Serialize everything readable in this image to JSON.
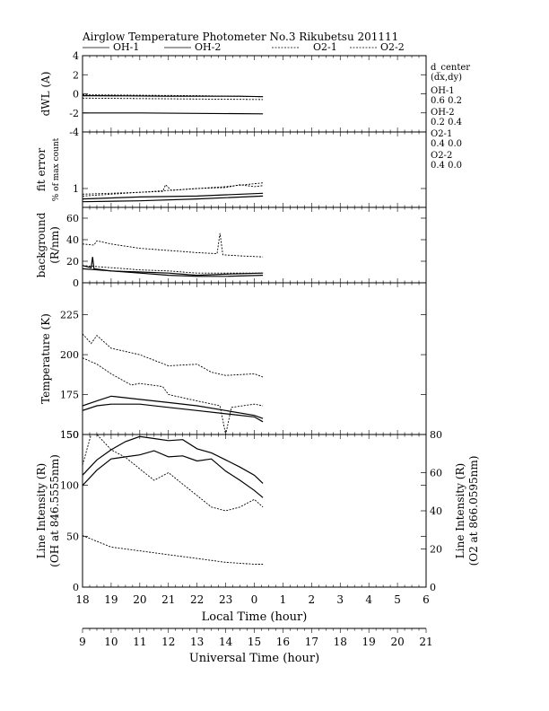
{
  "chart_data": {
    "type": "line",
    "title": "Airglow Temperature Photometer No.3  Rikubetsu    201111",
    "legend": [
      {
        "name": "OH-1",
        "style": "solid"
      },
      {
        "name": "OH-2",
        "style": "solid"
      },
      {
        "name": "O2-1",
        "style": "dashed"
      },
      {
        "name": "O2-2",
        "style": "dashed"
      }
    ],
    "x_axis_local": {
      "label": "Local Time (hour)",
      "ticks": [
        "18",
        "19",
        "20",
        "21",
        "22",
        "23",
        "0",
        "1",
        "2",
        "3",
        "4",
        "5",
        "6"
      ],
      "range_hours": [
        18,
        30
      ]
    },
    "x_axis_ut": {
      "label": "Universal Time (hour)",
      "ticks": [
        "9",
        "10",
        "11",
        "12",
        "13",
        "14",
        "15",
        "16",
        "17",
        "18",
        "19",
        "20",
        "21"
      ]
    },
    "panels": [
      {
        "id": "dwl",
        "ylabel": "dWL (A)",
        "ylim": [
          -4,
          4
        ],
        "yticks": [
          "4",
          "2",
          "0",
          "-2",
          "-4"
        ],
        "series": [
          {
            "name": "OH-1",
            "style": "solid",
            "points": [
              [
                18.0,
                -0.2
              ],
              [
                19.5,
                -0.22
              ],
              [
                21,
                -0.25
              ],
              [
                22.5,
                -0.25
              ],
              [
                23.5,
                -0.25
              ],
              [
                24.3,
                -0.3
              ]
            ]
          },
          {
            "name": "OH-2",
            "style": "solid",
            "points": [
              [
                18.0,
                -2.0
              ],
              [
                20,
                -2.0
              ],
              [
                22,
                -2.05
              ],
              [
                24.3,
                -2.1
              ]
            ]
          },
          {
            "name": "O2-1",
            "style": "dashed",
            "points": [
              [
                18.0,
                -0.1
              ],
              [
                20,
                -0.15
              ],
              [
                22,
                -0.2
              ],
              [
                24.3,
                -0.3
              ]
            ]
          },
          {
            "name": "O2-2",
            "style": "dashed",
            "points": [
              [
                18.0,
                -0.45
              ],
              [
                20,
                -0.5
              ],
              [
                22,
                -0.55
              ],
              [
                24.3,
                -0.6
              ]
            ]
          }
        ]
      },
      {
        "id": "fit_error",
        "ylabel": "fit error",
        "ylabel2": "% of max count",
        "ylim": [
          0,
          4
        ],
        "yticks": [
          "1"
        ],
        "series": [
          {
            "name": "OH-1",
            "style": "solid",
            "points": [
              [
                18,
                0.3
              ],
              [
                20,
                0.35
              ],
              [
                22,
                0.45
              ],
              [
                24.3,
                0.6
              ]
            ]
          },
          {
            "name": "OH-2",
            "style": "solid",
            "points": [
              [
                18,
                0.45
              ],
              [
                20,
                0.55
              ],
              [
                22,
                0.6
              ],
              [
                24.3,
                0.75
              ]
            ]
          },
          {
            "name": "O2-1",
            "style": "dashed",
            "points": [
              [
                18,
                0.7
              ],
              [
                19,
                0.75
              ],
              [
                20,
                0.8
              ],
              [
                20.8,
                0.85
              ],
              [
                20.9,
                1.2
              ],
              [
                21.1,
                0.9
              ],
              [
                22,
                1.0
              ],
              [
                23,
                1.05
              ],
              [
                23.5,
                1.2
              ],
              [
                24,
                1.1
              ],
              [
                24.3,
                1.15
              ]
            ]
          },
          {
            "name": "O2-2",
            "style": "dashed",
            "points": [
              [
                18,
                0.6
              ],
              [
                19,
                0.7
              ],
              [
                20,
                0.8
              ],
              [
                21,
                0.9
              ],
              [
                22,
                1.0
              ],
              [
                23,
                1.1
              ],
              [
                24.3,
                1.3
              ]
            ]
          }
        ]
      },
      {
        "id": "background",
        "ylabel": "background",
        "ylabel2": "(R/nm)",
        "ylim": [
          0,
          70
        ],
        "yticks": [
          "60",
          "40",
          "20",
          "0"
        ],
        "series": [
          {
            "name": "OH-1",
            "style": "solid",
            "points": [
              [
                18,
                16
              ],
              [
                18.3,
                14
              ],
              [
                18.35,
                24
              ],
              [
                18.4,
                13
              ],
              [
                19,
                11
              ],
              [
                20,
                10
              ],
              [
                21,
                9
              ],
              [
                22,
                7
              ],
              [
                23,
                8
              ],
              [
                24.3,
                9
              ]
            ]
          },
          {
            "name": "OH-2",
            "style": "solid",
            "points": [
              [
                18,
                13
              ],
              [
                19,
                11
              ],
              [
                20,
                9
              ],
              [
                21,
                7
              ],
              [
                22,
                6
              ],
              [
                23,
                6
              ],
              [
                24.3,
                7
              ]
            ]
          },
          {
            "name": "O2-1",
            "style": "dashed",
            "points": [
              [
                18,
                36
              ],
              [
                18.4,
                35
              ],
              [
                18.5,
                39
              ],
              [
                19,
                36
              ],
              [
                20,
                32
              ],
              [
                21,
                30
              ],
              [
                22,
                28
              ],
              [
                22.7,
                27
              ],
              [
                22.8,
                46
              ],
              [
                22.9,
                26
              ],
              [
                23.5,
                25
              ],
              [
                24.3,
                24
              ]
            ]
          },
          {
            "name": "O2-2",
            "style": "dashed",
            "points": [
              [
                18,
                16
              ],
              [
                19,
                14
              ],
              [
                20,
                12
              ],
              [
                21,
                11
              ],
              [
                22,
                9
              ],
              [
                23,
                9
              ],
              [
                24.3,
                9
              ]
            ]
          }
        ]
      },
      {
        "id": "temperature",
        "ylabel": "Temperature (K)",
        "ylim": [
          150,
          245
        ],
        "yticks": [
          "225",
          "200",
          "175",
          "150"
        ],
        "series": [
          {
            "name": "OH-1",
            "style": "solid",
            "points": [
              [
                18,
                168
              ],
              [
                18.5,
                171
              ],
              [
                19,
                174
              ],
              [
                20,
                172
              ],
              [
                21,
                170
              ],
              [
                22,
                168
              ],
              [
                23,
                165
              ],
              [
                24,
                162
              ],
              [
                24.3,
                160
              ]
            ]
          },
          {
            "name": "OH-2",
            "style": "solid",
            "points": [
              [
                18,
                165
              ],
              [
                18.5,
                168
              ],
              [
                19,
                169
              ],
              [
                20,
                169
              ],
              [
                21,
                167
              ],
              [
                22,
                165
              ],
              [
                23,
                163
              ],
              [
                24,
                161
              ],
              [
                24.3,
                158
              ]
            ]
          },
          {
            "name": "O2-1",
            "style": "dashed",
            "points": [
              [
                18,
                213
              ],
              [
                18.3,
                207
              ],
              [
                18.5,
                212
              ],
              [
                19,
                204
              ],
              [
                20,
                200
              ],
              [
                21,
                193
              ],
              [
                22,
                194
              ],
              [
                22.5,
                189
              ],
              [
                23,
                187
              ],
              [
                24,
                188
              ],
              [
                24.3,
                186
              ]
            ]
          },
          {
            "name": "O2-2",
            "style": "dashed",
            "points": [
              [
                18,
                198
              ],
              [
                18.5,
                194
              ],
              [
                19,
                188
              ],
              [
                19.7,
                181
              ],
              [
                20,
                182
              ],
              [
                20.8,
                180
              ],
              [
                21,
                175
              ],
              [
                22,
                171
              ],
              [
                22.8,
                168
              ],
              [
                23,
                150
              ],
              [
                23.2,
                167
              ],
              [
                24,
                169
              ],
              [
                24.3,
                168
              ]
            ]
          }
        ]
      },
      {
        "id": "intensity",
        "ylabel": "Line Intensity (R)",
        "ylabel2": "(OH at 846.5555nm)",
        "ylim": [
          0,
          150
        ],
        "yticks": [
          "150",
          "100",
          "50",
          "0"
        ],
        "yright_label": "Line Intensity (R)",
        "yright_label2": "(O2 at 866.0595nm)",
        "yright_lim": [
          0,
          80
        ],
        "yright_ticks": [
          "80",
          "60",
          "40",
          "20",
          "0"
        ],
        "series": [
          {
            "name": "OH-1",
            "style": "solid",
            "axis": "left",
            "points": [
              [
                18,
                100
              ],
              [
                18.5,
                115
              ],
              [
                19,
                126
              ],
              [
                19.5,
                128
              ],
              [
                20,
                130
              ],
              [
                20.5,
                134
              ],
              [
                21,
                128
              ],
              [
                21.5,
                129
              ],
              [
                22,
                124
              ],
              [
                22.5,
                126
              ],
              [
                23,
                114
              ],
              [
                23.5,
                105
              ],
              [
                24,
                95
              ],
              [
                24.3,
                88
              ]
            ]
          },
          {
            "name": "OH-2",
            "style": "solid",
            "axis": "left",
            "points": [
              [
                18,
                110
              ],
              [
                18.5,
                125
              ],
              [
                19,
                135
              ],
              [
                19.5,
                143
              ],
              [
                20,
                148
              ],
              [
                20.5,
                146
              ],
              [
                21,
                144
              ],
              [
                21.5,
                145
              ],
              [
                22,
                136
              ],
              [
                22.5,
                132
              ],
              [
                23,
                125
              ],
              [
                23.5,
                118
              ],
              [
                24,
                110
              ],
              [
                24.3,
                102
              ]
            ]
          },
          {
            "name": "O2-1",
            "style": "dashed",
            "axis": "right",
            "points": [
              [
                18,
                64
              ],
              [
                18.3,
                80
              ],
              [
                18.5,
                80
              ],
              [
                19,
                72
              ],
              [
                19.5,
                68
              ],
              [
                20,
                62
              ],
              [
                20.5,
                56
              ],
              [
                21,
                60
              ],
              [
                21.5,
                54
              ],
              [
                22,
                48
              ],
              [
                22.5,
                42
              ],
              [
                23,
                40
              ],
              [
                23.5,
                42
              ],
              [
                24,
                46
              ],
              [
                24.3,
                42
              ]
            ]
          },
          {
            "name": "O2-2",
            "style": "dashed",
            "axis": "right",
            "points": [
              [
                18,
                27
              ],
              [
                18.5,
                24
              ],
              [
                19,
                21
              ],
              [
                20,
                19
              ],
              [
                21,
                17
              ],
              [
                22,
                15
              ],
              [
                23,
                13
              ],
              [
                24,
                12
              ],
              [
                24.3,
                12
              ]
            ]
          }
        ]
      }
    ],
    "dwl_annotation": {
      "header1": "d_center",
      "header2": "(dx,dy)",
      "items": [
        {
          "name": "OH-1",
          "value": "0.6   0.2"
        },
        {
          "name": "OH-2",
          "value": "0.2   0.4"
        },
        {
          "name": "O2-1",
          "value": "0.4   0.0"
        },
        {
          "name": "O2-2",
          "value": "0.4   0.0"
        }
      ]
    }
  }
}
